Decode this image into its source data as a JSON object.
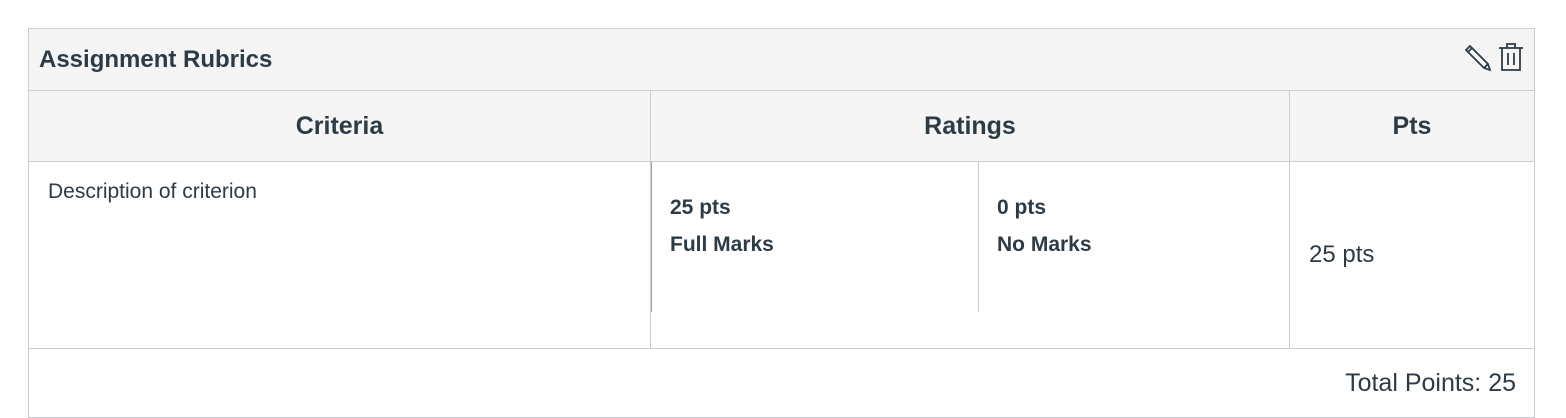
{
  "title": "Assignment Rubrics",
  "icons": {
    "edit": "pencil-icon",
    "delete": "trash-icon"
  },
  "columns": {
    "criteria": "Criteria",
    "ratings": "Ratings",
    "pts": "Pts"
  },
  "rows": [
    {
      "criterion": "Description of criterion",
      "ratings": [
        {
          "points": "25 pts",
          "label": "Full Marks"
        },
        {
          "points": "0 pts",
          "label": "No Marks"
        }
      ],
      "pts": "25 pts"
    }
  ],
  "total": "Total Points: 25"
}
